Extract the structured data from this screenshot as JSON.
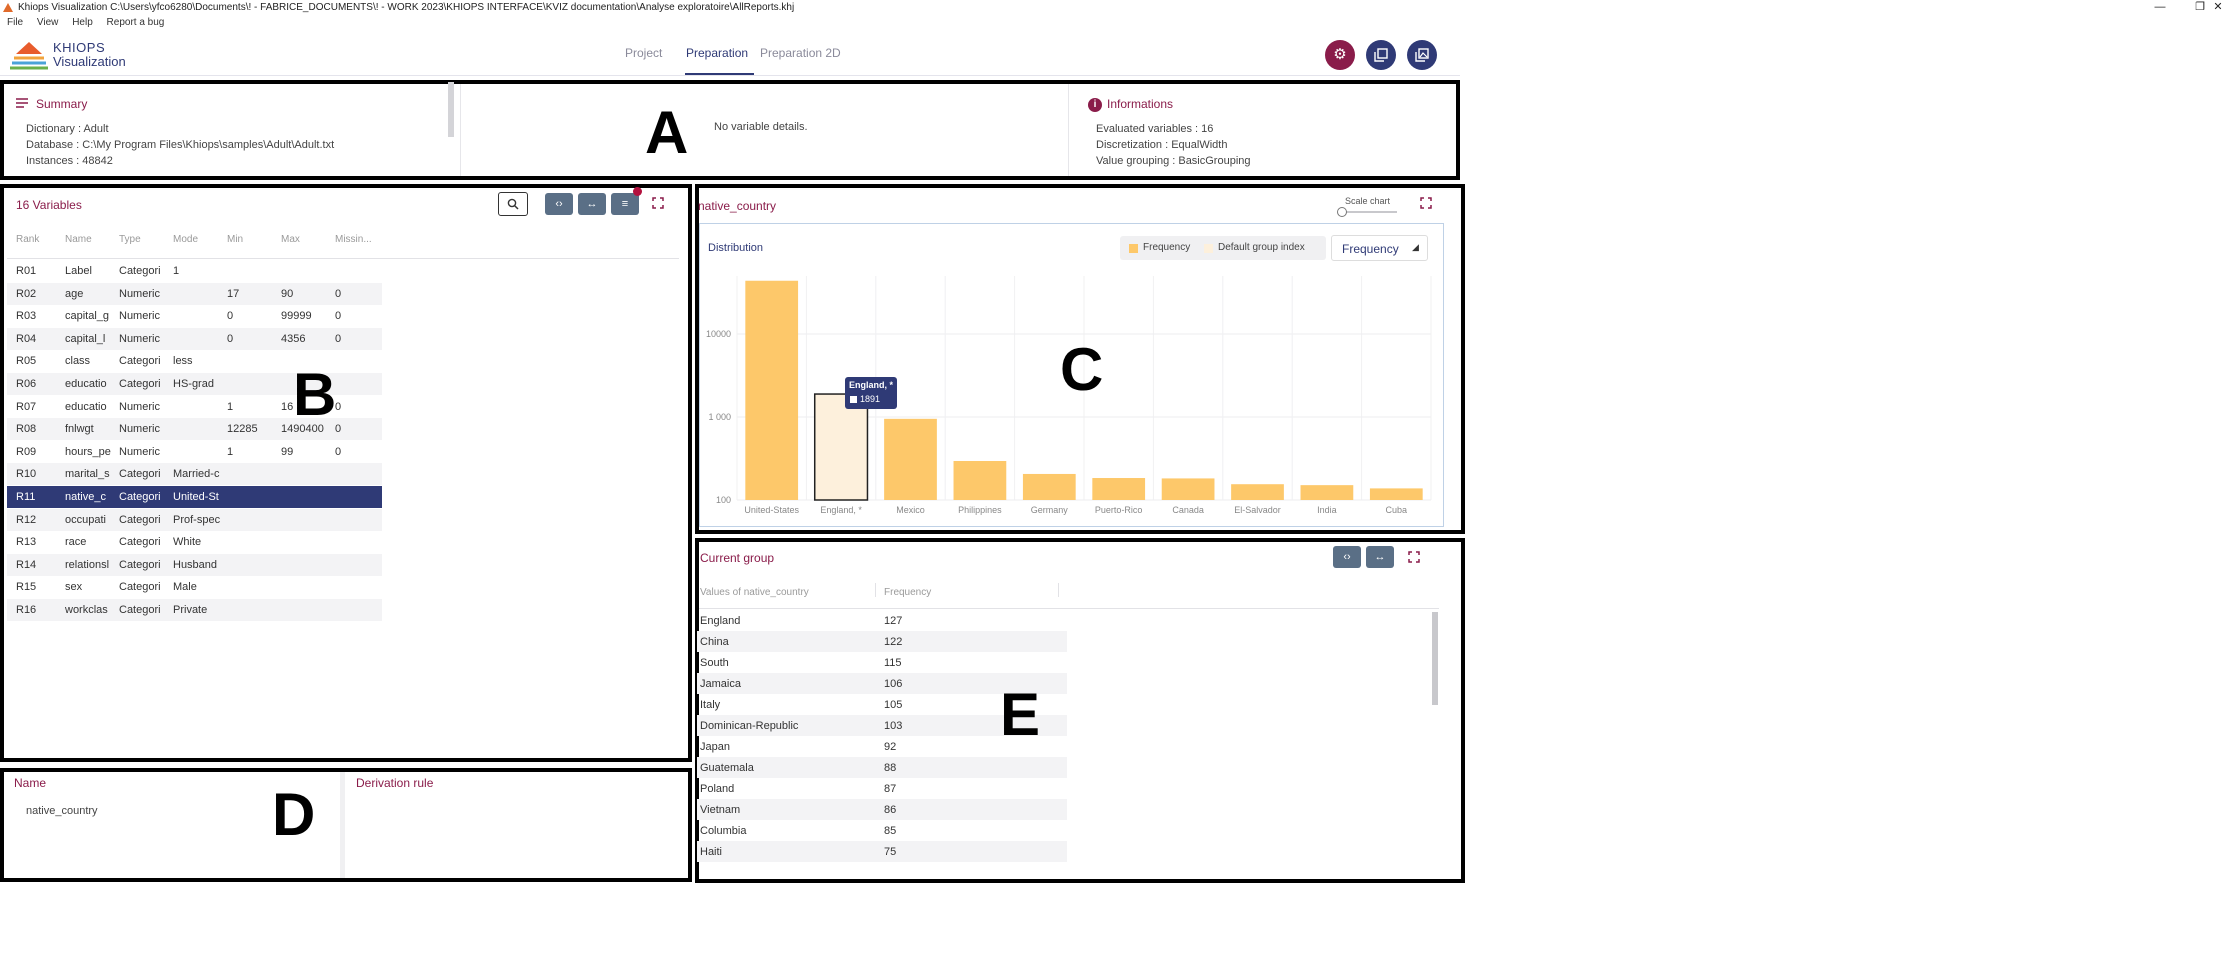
{
  "window": {
    "title": "Khiops Visualization C:\\Users\\yfco6280\\Documents\\! - FABRICE_DOCUMENTS\\! - WORK 2023\\KHIOPS INTERFACE\\KVIZ documentation\\Analyse exploratoire\\AllReports.khj",
    "minimize": "—",
    "restore": "❐",
    "close": "✕"
  },
  "menu": [
    "File",
    "View",
    "Help",
    "Report a bug"
  ],
  "logo": {
    "line1": "KHIOPS",
    "line2": "Visualization"
  },
  "tabs": [
    "Project",
    "Preparation",
    "Preparation 2D"
  ],
  "active_tab": "Preparation",
  "colors": {
    "brand": "#2f3a76",
    "accent": "#8a1c4a",
    "bar": "#fdc86a",
    "bar_highlight": "#fdf0dc",
    "settings": "#8a1c4a"
  },
  "header_buttons": [
    "gear-icon",
    "copy-icon",
    "image-icon"
  ],
  "summary": {
    "title": "Summary",
    "lines": [
      "Dictionary : Adult",
      "Database : C:\\My Program Files\\Khiops\\samples\\Adult\\Adult.txt",
      "Instances : 48842"
    ]
  },
  "details": {
    "text": "No variable details."
  },
  "informations": {
    "title": "Informations",
    "lines": [
      "Evaluated variables : 16",
      "Discretization : EqualWidth",
      "Value grouping : BasicGrouping"
    ]
  },
  "labels": {
    "A": "A",
    "B": "B",
    "C": "C",
    "D": "D",
    "E": "E"
  },
  "variables": {
    "title": "16 Variables",
    "columns": [
      "Rank",
      "Name",
      "Type",
      "Mode",
      "Min",
      "Max",
      "Missin..."
    ],
    "rows": [
      [
        "R01",
        "Label",
        "Categori",
        "1",
        "",
        "",
        ""
      ],
      [
        "R02",
        "age",
        "Numeric",
        "",
        "17",
        "90",
        "0"
      ],
      [
        "R03",
        "capital_g",
        "Numeric",
        "",
        "0",
        "99999",
        "0"
      ],
      [
        "R04",
        "capital_l",
        "Numeric",
        "",
        "0",
        "4356",
        "0"
      ],
      [
        "R05",
        "class",
        "Categori",
        "less",
        "",
        "",
        ""
      ],
      [
        "R06",
        "educatio",
        "Categori",
        "HS-grad",
        "",
        "",
        ""
      ],
      [
        "R07",
        "educatio",
        "Numeric",
        "",
        "1",
        "16",
        "0"
      ],
      [
        "R08",
        "fnlwgt",
        "Numeric",
        "",
        "12285",
        "1490400",
        "0"
      ],
      [
        "R09",
        "hours_pe",
        "Numeric",
        "",
        "1",
        "99",
        "0"
      ],
      [
        "R10",
        "marital_s",
        "Categori",
        "Married-c",
        "",
        "",
        ""
      ],
      [
        "R11",
        "native_c",
        "Categori",
        "United-St",
        "",
        "",
        ""
      ],
      [
        "R12",
        "occupati",
        "Categori",
        "Prof-spec",
        "",
        "",
        ""
      ],
      [
        "R13",
        "race",
        "Categori",
        "White",
        "",
        "",
        ""
      ],
      [
        "R14",
        "relationsl",
        "Categori",
        "Husband",
        "",
        "",
        ""
      ],
      [
        "R15",
        "sex",
        "Categori",
        "Male",
        "",
        "",
        ""
      ],
      [
        "R16",
        "workclas",
        "Categori",
        "Private",
        "",
        "",
        ""
      ]
    ],
    "selected": 10
  },
  "chart_panel": {
    "variable": "native_country",
    "scale_label": "Scale chart",
    "subtitle": "Distribution",
    "legend": [
      "Frequency",
      "Default group index"
    ],
    "dropdown": "Frequency",
    "tooltip": {
      "label": "England, *",
      "value": "1891"
    }
  },
  "chart_data": {
    "type": "bar",
    "log_scale": true,
    "categories": [
      "United-States",
      "England, *",
      "Mexico",
      "Philippines",
      "Germany",
      "Puerto-Rico",
      "Canada",
      "El-Salvador",
      "India",
      "Cuba"
    ],
    "series": [
      {
        "name": "Frequency",
        "values": [
          43832,
          1891,
          951,
          295,
          206,
          184,
          182,
          155,
          151,
          138
        ]
      }
    ],
    "y_ticks": [
      100,
      1000,
      10000
    ],
    "y_tick_labels": [
      "100",
      "1 000",
      "10000"
    ],
    "ylim": [
      100,
      50000
    ],
    "highlighted_index": 1,
    "grid": true,
    "legend_position": "top-right"
  },
  "derivation": {
    "name_title": "Name",
    "name_value": "native_country",
    "rule_title": "Derivation rule"
  },
  "current_group": {
    "title": "Current group",
    "columns": [
      "Values of native_country",
      "Frequency"
    ],
    "rows": [
      [
        "England",
        "127"
      ],
      [
        "China",
        "122"
      ],
      [
        "South",
        "115"
      ],
      [
        "Jamaica",
        "106"
      ],
      [
        "Italy",
        "105"
      ],
      [
        "Dominican-Republic",
        "103"
      ],
      [
        "Japan",
        "92"
      ],
      [
        "Guatemala",
        "88"
      ],
      [
        "Poland",
        "87"
      ],
      [
        "Vietnam",
        "86"
      ],
      [
        "Columbia",
        "85"
      ],
      [
        "Haiti",
        "75"
      ]
    ]
  }
}
